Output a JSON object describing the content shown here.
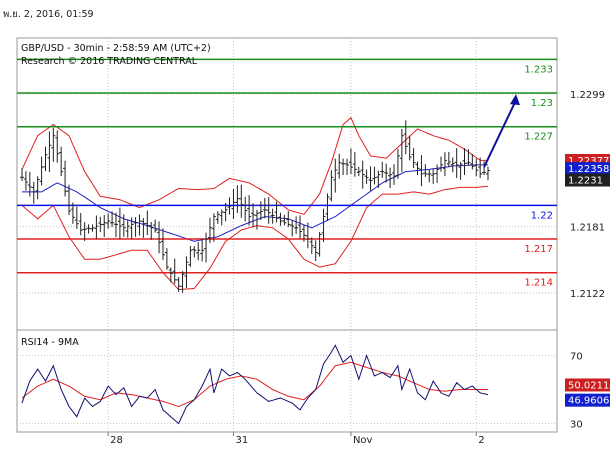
{
  "header": {
    "date_time": "พ.ย. 2, 2016, 01:59",
    "title": "GBP/USD - 30min - 2:58:59 AM (UTC+2)",
    "source": "Research © 2016 TRADING CENTRAL"
  },
  "colors": {
    "background": "#ffffff",
    "grid": "#b8b8b8",
    "price_bars": "#202020",
    "bollinger": "#e02020",
    "moving_average": "#2020c8",
    "resistance": "#1a8c1a",
    "pivot": "#1010e0",
    "support": "#e02020",
    "projection_arrow": "#10109a",
    "rsi_line": "#101070",
    "rsi_ma": "#e02020",
    "label_red": "#cc2020",
    "label_blue": "#1020cc",
    "label_black": "#202020"
  },
  "chart_data": [
    {
      "type": "line",
      "panel": "price",
      "title": "GBP/USD - 30min - 2:58:59 AM (UTC+2)",
      "ylim": [
        1.2089,
        1.2349
      ],
      "y_ticks": [
        1.2122,
        1.2181,
        1.2299
      ],
      "x_tick_labels": [
        {
          "label": "28",
          "bar": 22
        },
        {
          "label": "31",
          "bar": 54
        },
        {
          "label": "Nov",
          "bar": 84
        },
        {
          "label": "2",
          "bar": 116
        }
      ],
      "grid": true,
      "levels": [
        {
          "name": "resistance",
          "value": 1.233,
          "label": "1.233"
        },
        {
          "name": "resistance",
          "value": 1.23,
          "label": "1.23"
        },
        {
          "name": "resistance",
          "value": 1.227,
          "label": "1.227"
        },
        {
          "name": "pivot",
          "value": 1.22,
          "label": "1.22"
        },
        {
          "name": "support",
          "value": 1.217,
          "label": "1.217"
        },
        {
          "name": "support",
          "value": 1.214,
          "label": "1.214"
        }
      ],
      "price_tags": [
        {
          "value": 1.22377,
          "label": "1.22377",
          "style": "red"
        },
        {
          "value": 1.22358,
          "label": "1.22358",
          "style": "blue"
        },
        {
          "value": 1.2231,
          "label": "1.2231",
          "style": "black"
        }
      ],
      "projection_arrow": {
        "from": [
          118,
          1.2234
        ],
        "to": [
          122,
          1.2299
        ]
      },
      "bars_count": 120,
      "price_anchors": [
        [
          0,
          1.2225
        ],
        [
          3,
          1.2212
        ],
        [
          6,
          1.2245
        ],
        [
          8,
          1.2262
        ],
        [
          10,
          1.223
        ],
        [
          12,
          1.2195
        ],
        [
          15,
          1.2178
        ],
        [
          18,
          1.218
        ],
        [
          22,
          1.2186
        ],
        [
          26,
          1.218
        ],
        [
          30,
          1.2186
        ],
        [
          34,
          1.2178
        ],
        [
          37,
          1.2145
        ],
        [
          40,
          1.2128
        ],
        [
          43,
          1.216
        ],
        [
          46,
          1.216
        ],
        [
          49,
          1.219
        ],
        [
          52,
          1.2196
        ],
        [
          55,
          1.2206
        ],
        [
          58,
          1.219
        ],
        [
          62,
          1.2196
        ],
        [
          66,
          1.2186
        ],
        [
          70,
          1.218
        ],
        [
          73,
          1.217
        ],
        [
          75,
          1.2158
        ],
        [
          77,
          1.219
        ],
        [
          79,
          1.2225
        ],
        [
          81,
          1.2238
        ],
        [
          83,
          1.2236
        ],
        [
          86,
          1.223
        ],
        [
          89,
          1.2222
        ],
        [
          92,
          1.223
        ],
        [
          95,
          1.2226
        ],
        [
          97,
          1.2262
        ],
        [
          99,
          1.2243
        ],
        [
          102,
          1.2228
        ],
        [
          105,
          1.2228
        ],
        [
          108,
          1.224
        ],
        [
          111,
          1.2236
        ],
        [
          114,
          1.2238
        ],
        [
          117,
          1.2228
        ],
        [
          119,
          1.2231
        ]
      ],
      "bollinger_upper": [
        [
          0,
          1.2232
        ],
        [
          4,
          1.2262
        ],
        [
          8,
          1.2272
        ],
        [
          12,
          1.2262
        ],
        [
          16,
          1.223
        ],
        [
          20,
          1.2208
        ],
        [
          25,
          1.2205
        ],
        [
          30,
          1.2198
        ],
        [
          35,
          1.2205
        ],
        [
          40,
          1.2215
        ],
        [
          45,
          1.2214
        ],
        [
          49,
          1.2215
        ],
        [
          53,
          1.2224
        ],
        [
          58,
          1.222
        ],
        [
          63,
          1.221
        ],
        [
          68,
          1.2196
        ],
        [
          72,
          1.2192
        ],
        [
          76,
          1.221
        ],
        [
          79,
          1.2238
        ],
        [
          82,
          1.2272
        ],
        [
          84,
          1.2278
        ],
        [
          86,
          1.2262
        ],
        [
          89,
          1.2244
        ],
        [
          93,
          1.2242
        ],
        [
          97,
          1.2255
        ],
        [
          101,
          1.2268
        ],
        [
          105,
          1.2262
        ],
        [
          109,
          1.2258
        ],
        [
          113,
          1.225
        ],
        [
          117,
          1.224
        ]
      ],
      "bollinger_lower": [
        [
          0,
          1.22
        ],
        [
          4,
          1.2188
        ],
        [
          8,
          1.22
        ],
        [
          12,
          1.2172
        ],
        [
          16,
          1.2152
        ],
        [
          20,
          1.2152
        ],
        [
          24,
          1.2156
        ],
        [
          28,
          1.216
        ],
        [
          32,
          1.216
        ],
        [
          36,
          1.214
        ],
        [
          40,
          1.2125
        ],
        [
          44,
          1.2126
        ],
        [
          48,
          1.2144
        ],
        [
          52,
          1.2168
        ],
        [
          56,
          1.2178
        ],
        [
          60,
          1.2182
        ],
        [
          64,
          1.218
        ],
        [
          68,
          1.217
        ],
        [
          72,
          1.2152
        ],
        [
          76,
          1.2145
        ],
        [
          80,
          1.2148
        ],
        [
          84,
          1.2168
        ],
        [
          88,
          1.2198
        ],
        [
          92,
          1.221
        ],
        [
          96,
          1.221
        ],
        [
          100,
          1.2212
        ],
        [
          104,
          1.221
        ],
        [
          108,
          1.2214
        ],
        [
          112,
          1.2216
        ],
        [
          116,
          1.2216
        ],
        [
          119,
          1.2217
        ]
      ],
      "moving_average": [
        [
          0,
          1.2212
        ],
        [
          5,
          1.2212
        ],
        [
          9,
          1.222
        ],
        [
          14,
          1.2212
        ],
        [
          20,
          1.2198
        ],
        [
          26,
          1.2188
        ],
        [
          32,
          1.2182
        ],
        [
          38,
          1.2175
        ],
        [
          44,
          1.2168
        ],
        [
          50,
          1.2172
        ],
        [
          56,
          1.2182
        ],
        [
          62,
          1.219
        ],
        [
          68,
          1.2188
        ],
        [
          74,
          1.218
        ],
        [
          80,
          1.219
        ],
        [
          86,
          1.2205
        ],
        [
          92,
          1.222
        ],
        [
          98,
          1.223
        ],
        [
          104,
          1.2232
        ],
        [
          110,
          1.2235
        ],
        [
          116,
          1.2236
        ],
        [
          119,
          1.2236
        ]
      ]
    },
    {
      "type": "line",
      "panel": "rsi",
      "title": "RSI14 - 9MA",
      "ylim": [
        25,
        85
      ],
      "y_ticks": [
        30,
        70
      ],
      "grid": true,
      "tags": [
        {
          "value": 50.0211,
          "label": "50.0211",
          "style": "red"
        },
        {
          "value": 46.9606,
          "label": "46.9606",
          "style": "blue"
        }
      ],
      "rsi": [
        [
          0,
          42
        ],
        [
          2,
          55
        ],
        [
          4,
          62
        ],
        [
          6,
          55
        ],
        [
          8,
          64
        ],
        [
          10,
          50
        ],
        [
          12,
          40
        ],
        [
          14,
          34
        ],
        [
          16,
          45
        ],
        [
          18,
          40
        ],
        [
          20,
          43
        ],
        [
          22,
          52
        ],
        [
          24,
          47
        ],
        [
          26,
          51
        ],
        [
          28,
          40
        ],
        [
          30,
          46
        ],
        [
          32,
          45
        ],
        [
          34,
          50
        ],
        [
          36,
          38
        ],
        [
          38,
          34
        ],
        [
          40,
          30
        ],
        [
          42,
          40
        ],
        [
          44,
          44
        ],
        [
          46,
          52
        ],
        [
          48,
          62
        ],
        [
          49,
          48
        ],
        [
          51,
          62
        ],
        [
          53,
          58
        ],
        [
          55,
          60
        ],
        [
          57,
          56
        ],
        [
          60,
          48
        ],
        [
          63,
          43
        ],
        [
          66,
          45
        ],
        [
          69,
          42
        ],
        [
          71,
          38
        ],
        [
          73,
          45
        ],
        [
          75,
          50
        ],
        [
          77,
          65
        ],
        [
          79,
          72
        ],
        [
          80,
          76
        ],
        [
          82,
          66
        ],
        [
          84,
          70
        ],
        [
          86,
          56
        ],
        [
          88,
          70
        ],
        [
          90,
          58
        ],
        [
          92,
          60
        ],
        [
          94,
          57
        ],
        [
          96,
          64
        ],
        [
          97,
          50
        ],
        [
          99,
          62
        ],
        [
          101,
          48
        ],
        [
          103,
          44
        ],
        [
          105,
          55
        ],
        [
          107,
          48
        ],
        [
          109,
          46
        ],
        [
          111,
          54
        ],
        [
          113,
          50
        ],
        [
          115,
          52
        ],
        [
          117,
          48
        ],
        [
          119,
          47
        ]
      ],
      "rsi_ma": [
        [
          0,
          45
        ],
        [
          4,
          52
        ],
        [
          8,
          56
        ],
        [
          12,
          52
        ],
        [
          16,
          46
        ],
        [
          20,
          44
        ],
        [
          24,
          48
        ],
        [
          28,
          47
        ],
        [
          32,
          45
        ],
        [
          36,
          43
        ],
        [
          40,
          40
        ],
        [
          44,
          44
        ],
        [
          48,
          52
        ],
        [
          52,
          56
        ],
        [
          56,
          58
        ],
        [
          60,
          56
        ],
        [
          64,
          50
        ],
        [
          68,
          46
        ],
        [
          72,
          44
        ],
        [
          76,
          52
        ],
        [
          80,
          64
        ],
        [
          84,
          66
        ],
        [
          88,
          63
        ],
        [
          92,
          60
        ],
        [
          96,
          58
        ],
        [
          100,
          54
        ],
        [
          104,
          50
        ],
        [
          108,
          49
        ],
        [
          112,
          50
        ],
        [
          116,
          50
        ],
        [
          119,
          50
        ]
      ]
    }
  ]
}
